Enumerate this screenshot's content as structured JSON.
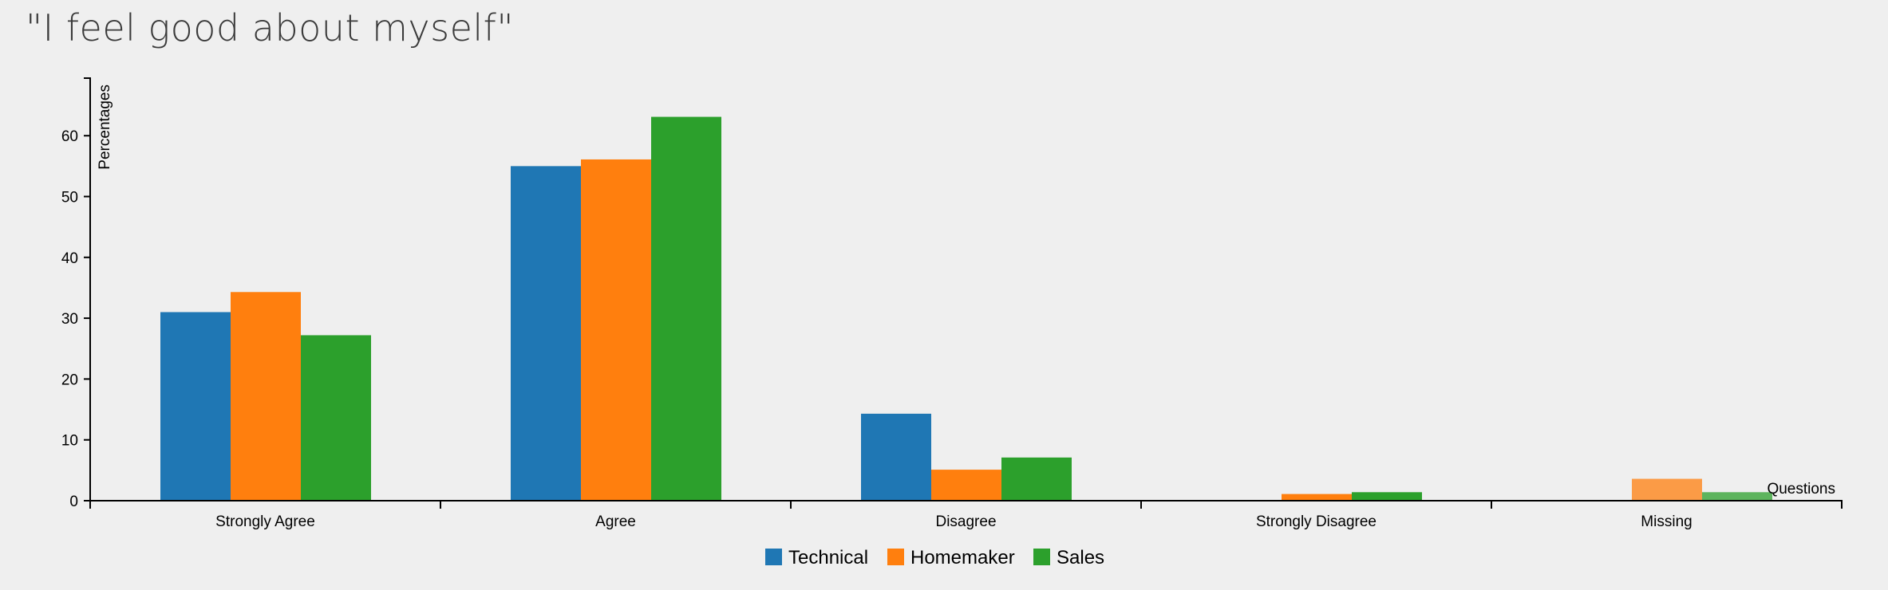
{
  "chart_data": {
    "type": "bar",
    "title": "\"I feel good about myself\"",
    "xlabel": "Questions",
    "ylabel": "Percentages",
    "categories": [
      "Strongly Agree",
      "Agree",
      "Disagree",
      "Strongly Disagree",
      "Missing"
    ],
    "series": [
      {
        "name": "Technical",
        "color": "#1f77b4",
        "values": [
          31,
          55,
          14.3,
          0,
          0
        ]
      },
      {
        "name": "Homemaker",
        "color": "#ff7f0e",
        "values": [
          34.3,
          56.1,
          5.1,
          1.1,
          3.6
        ]
      },
      {
        "name": "Sales",
        "color": "#2ca02c",
        "values": [
          27.2,
          63.1,
          7.1,
          1.4,
          1.4
        ]
      }
    ],
    "ylim": [
      0,
      70
    ],
    "yticks": [
      0,
      10,
      20,
      30,
      40,
      50,
      60
    ],
    "legend_position": "bottom-center",
    "grid": false
  }
}
